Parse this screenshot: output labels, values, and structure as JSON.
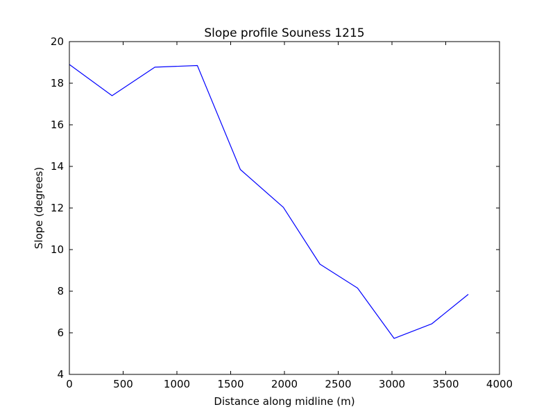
{
  "chart_data": {
    "type": "line",
    "title": "Slope profile Souness 1215",
    "xlabel": "Distance along midline (m)",
    "ylabel": "Slope (degrees)",
    "xlim": [
      0,
      4000
    ],
    "ylim": [
      4,
      20
    ],
    "xticks": [
      0,
      500,
      1000,
      1500,
      2000,
      2500,
      3000,
      3500,
      4000
    ],
    "yticks": [
      4,
      6,
      8,
      10,
      12,
      14,
      16,
      18,
      20
    ],
    "grid": false,
    "series": [
      {
        "color": "#0000ff",
        "x": [
          0,
          397,
          795,
          1190,
          1590,
          1990,
          2330,
          2680,
          3020,
          3370,
          3710
        ],
        "y": [
          18.9,
          17.4,
          18.77,
          18.85,
          13.85,
          12.03,
          9.3,
          8.15,
          5.73,
          6.43,
          7.85
        ]
      }
    ]
  }
}
